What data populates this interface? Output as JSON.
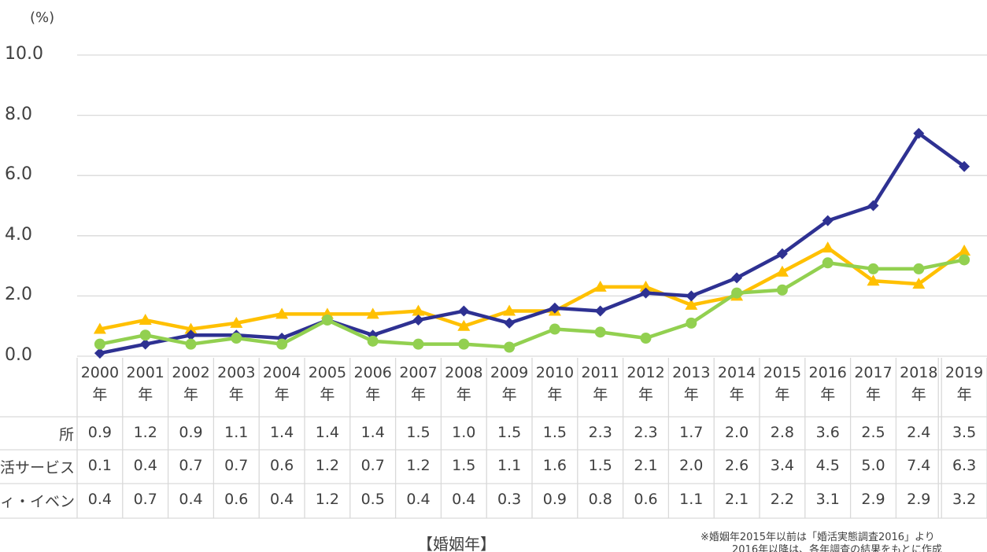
{
  "chart_data": {
    "type": "line",
    "y_unit": "(%)",
    "x_axis_title": "【婚姻年】",
    "notes": [
      "※婚姻年2015年以前は「婚活実態調査2016」より",
      "2016年以降は、各年調査の結果をもとに作成"
    ],
    "categories": [
      "2000年",
      "2001年",
      "2002年",
      "2003年",
      "2004年",
      "2005年",
      "2006年",
      "2007年",
      "2008年",
      "2009年",
      "2010年",
      "2011年",
      "2012年",
      "2013年",
      "2014年",
      "2015年",
      "2016年",
      "2017年",
      "2018年",
      "2019年"
    ],
    "ylim": [
      0,
      10
    ],
    "yticks": [
      {
        "value": 0,
        "label": "0.0"
      },
      {
        "value": 2,
        "label": "2.0"
      },
      {
        "value": 4,
        "label": "4.0"
      },
      {
        "value": 6,
        "label": "6.0"
      },
      {
        "value": 8,
        "label": "8.0"
      },
      {
        "value": 10,
        "label": "10.0"
      }
    ],
    "grid": true,
    "series": [
      {
        "name": "所",
        "color": "#FFC000",
        "marker": "triangle",
        "values": [
          0.9,
          1.2,
          0.9,
          1.1,
          1.4,
          1.4,
          1.4,
          1.5,
          1.0,
          1.5,
          1.5,
          2.3,
          2.3,
          1.7,
          2.0,
          2.8,
          3.6,
          2.5,
          2.4,
          3.5
        ],
        "value_labels": [
          "0.9",
          "1.2",
          "0.9",
          "1.1",
          "1.4",
          "1.4",
          "1.4",
          "1.5",
          "1.0",
          "1.5",
          "1.5",
          "2.3",
          "2.3",
          "1.7",
          "2.0",
          "2.8",
          "3.6",
          "2.5",
          "2.4",
          "3.5"
        ]
      },
      {
        "name": "活サービス",
        "color": "#2E3192",
        "marker": "diamond",
        "values": [
          0.1,
          0.4,
          0.7,
          0.7,
          0.6,
          1.2,
          0.7,
          1.2,
          1.5,
          1.1,
          1.6,
          1.5,
          2.1,
          2.0,
          2.6,
          3.4,
          4.5,
          5.0,
          7.4,
          6.3
        ],
        "value_labels": [
          "0.1",
          "0.4",
          "0.7",
          "0.7",
          "0.6",
          "1.2",
          "0.7",
          "1.2",
          "1.5",
          "1.1",
          "1.6",
          "1.5",
          "2.1",
          "2.0",
          "2.6",
          "3.4",
          "4.5",
          "5.0",
          "7.4",
          "6.3"
        ]
      },
      {
        "name": "ィ・イベント",
        "color": "#92D050",
        "marker": "circle",
        "values": [
          0.4,
          0.7,
          0.4,
          0.6,
          0.4,
          1.2,
          0.5,
          0.4,
          0.4,
          0.3,
          0.9,
          0.8,
          0.6,
          1.1,
          2.1,
          2.2,
          3.1,
          2.9,
          2.9,
          3.2
        ],
        "value_labels": [
          "0.4",
          "0.7",
          "0.4",
          "0.6",
          "0.4",
          "1.2",
          "0.5",
          "0.4",
          "0.4",
          "0.3",
          "0.9",
          "0.8",
          "0.6",
          "1.1",
          "2.1",
          "2.2",
          "3.1",
          "2.9",
          "2.9",
          "3.2"
        ]
      }
    ]
  }
}
